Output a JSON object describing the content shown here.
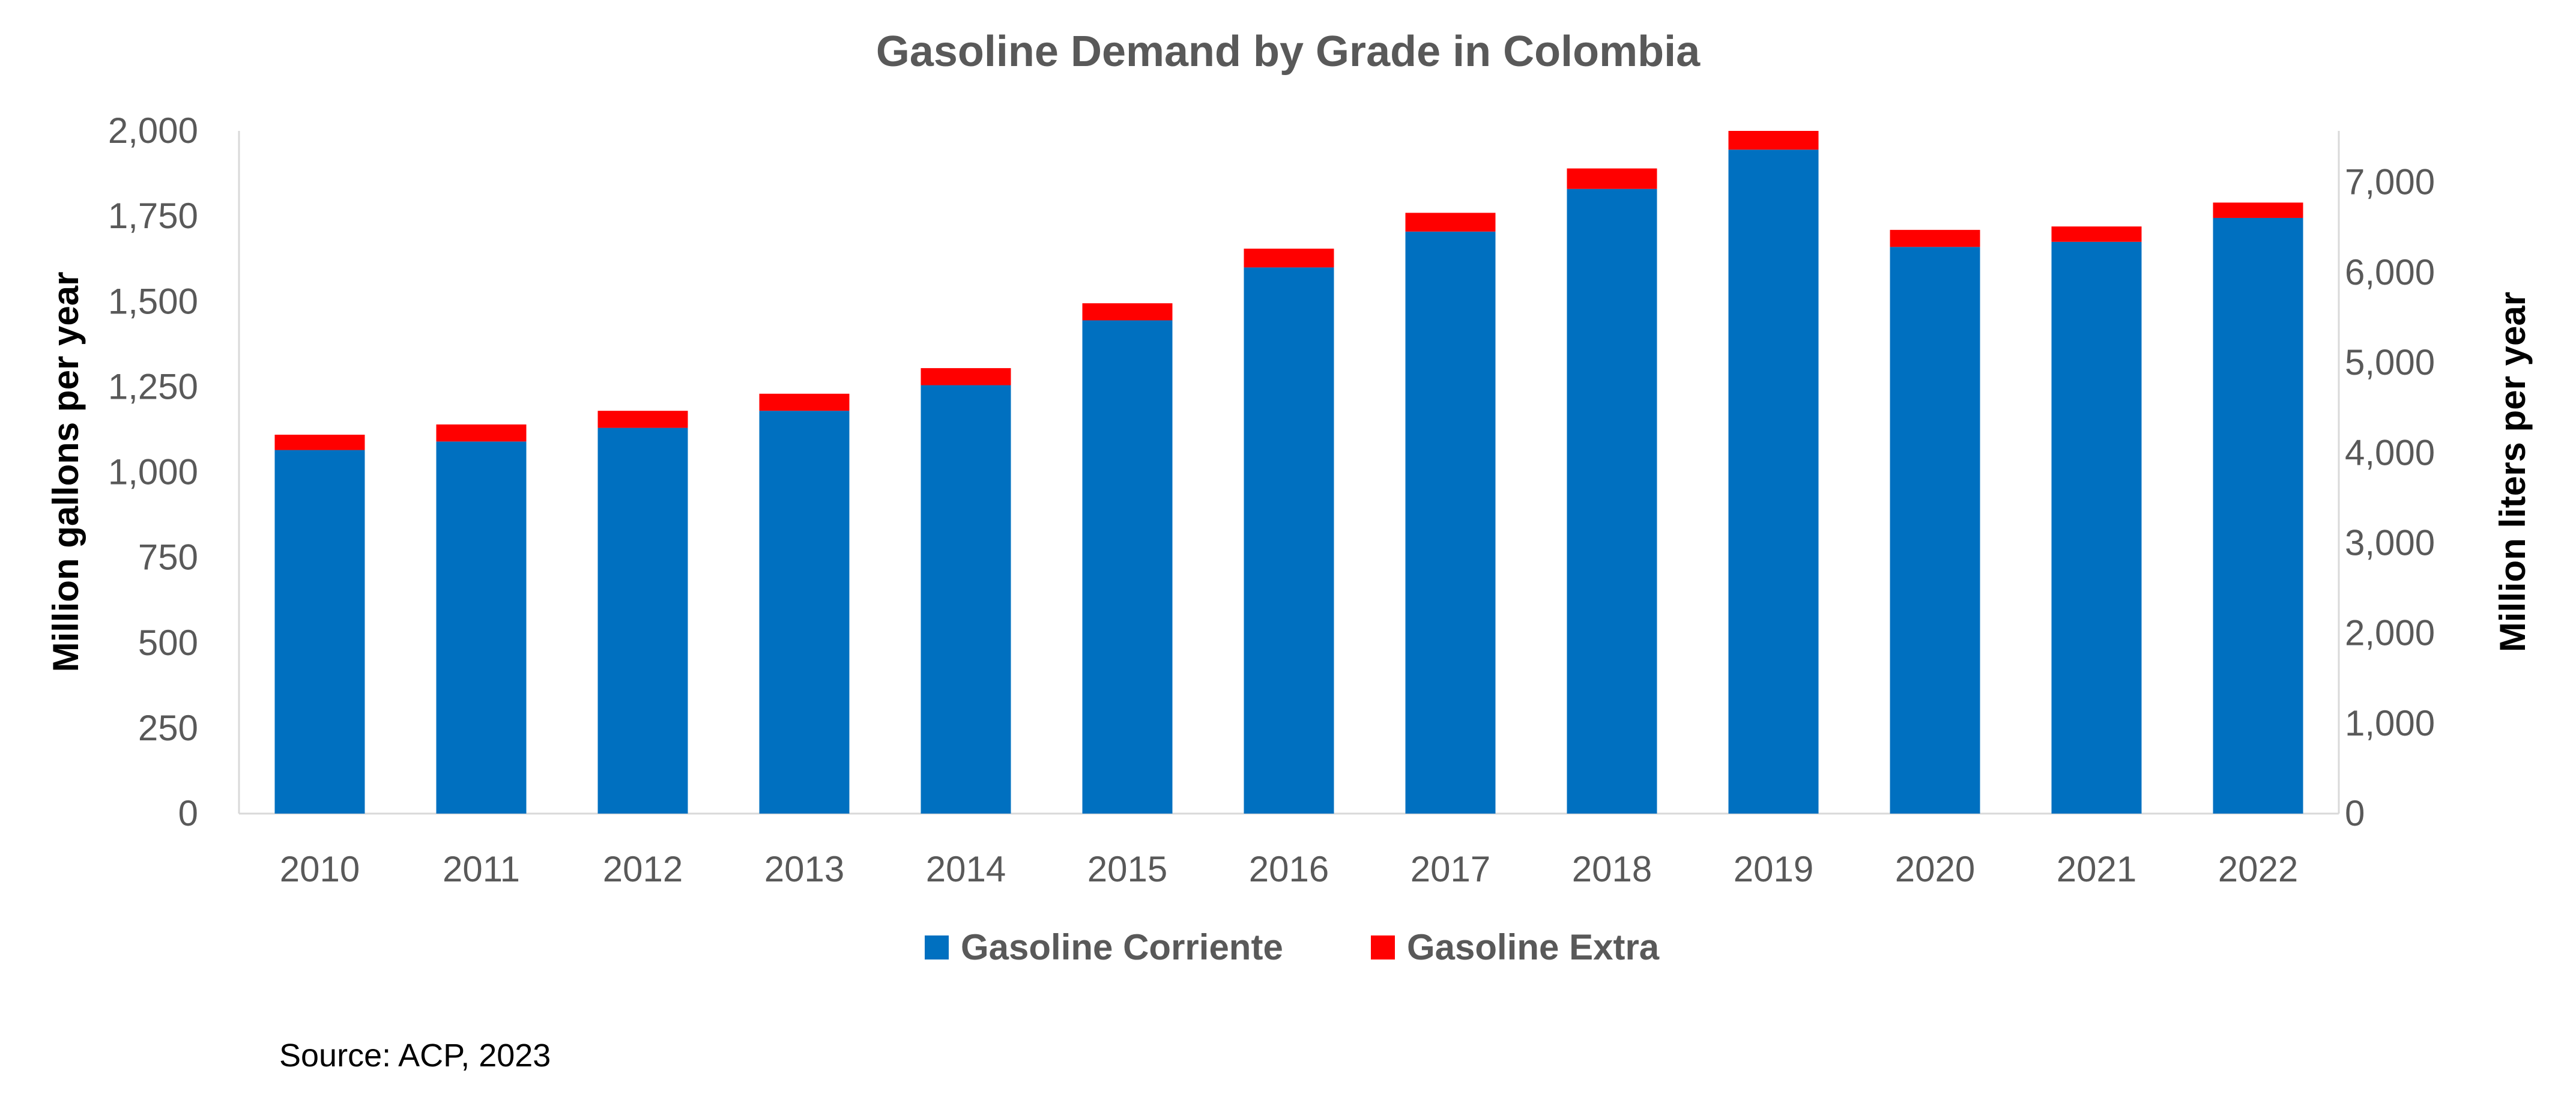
{
  "chart_data": {
    "type": "bar",
    "stacked": true,
    "title": "Gasoline Demand by Grade in Colombia",
    "ylabel": "Million gallons per year",
    "y2label": "Million liters per year",
    "ylim": [
      0,
      2000
    ],
    "y2lim": [
      0,
      7570.8
    ],
    "yticks": [
      "0",
      "250",
      "500",
      "750",
      "1,000",
      "1,250",
      "1,500",
      "1,750",
      "2,000"
    ],
    "y2ticks": [
      "0",
      "1,000",
      "2,000",
      "3,000",
      "4,000",
      "5,000",
      "6,000",
      "7,000"
    ],
    "categories": [
      "2010",
      "2011",
      "2012",
      "2013",
      "2014",
      "2015",
      "2016",
      "2017",
      "2018",
      "2019",
      "2020",
      "2021",
      "2022"
    ],
    "series": [
      {
        "name": "Gasoline Corriente",
        "color": "#0070C0",
        "values": [
          1065,
          1090,
          1130,
          1180,
          1255,
          1445,
          1600,
          1705,
          1830,
          1945,
          1660,
          1675,
          1745
        ]
      },
      {
        "name": "Gasoline Extra",
        "color": "#FF0000",
        "values": [
          45,
          50,
          50,
          50,
          50,
          50,
          55,
          55,
          60,
          55,
          50,
          45,
          45
        ]
      }
    ],
    "legend_position": "bottom",
    "grid": false
  },
  "source": "Source: ACP, 2023"
}
